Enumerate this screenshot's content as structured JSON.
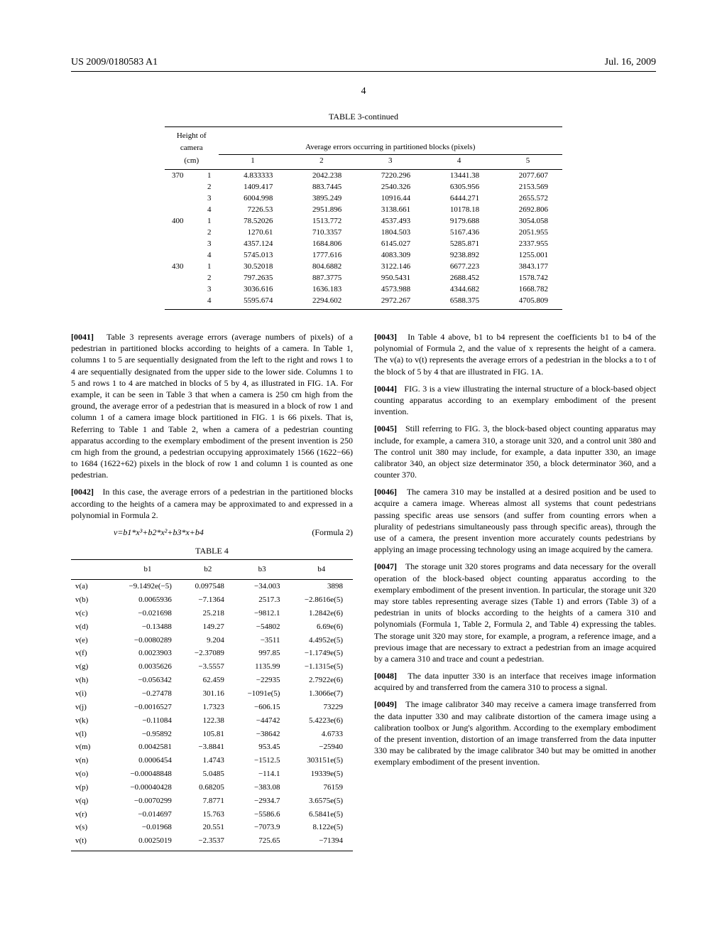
{
  "header": {
    "pub_number": "US 2009/0180583 A1",
    "pub_date": "Jul. 16, 2009",
    "page": "4"
  },
  "table3": {
    "title": "TABLE 3-continued",
    "header_left_l1": "Height of",
    "header_left_l2": "camera",
    "header_unit": "(cm)",
    "header_span": "Average errors occurring in partitioned blocks (pixels)",
    "cols": [
      "1",
      "2",
      "3",
      "4",
      "5"
    ],
    "groups": [
      {
        "h": "370",
        "rows": [
          [
            "1",
            "4.833333",
            "2042.238",
            "7220.296",
            "13441.38",
            "2077.607"
          ],
          [
            "2",
            "1409.417",
            "883.7445",
            "2540.326",
            "6305.956",
            "2153.569"
          ],
          [
            "3",
            "6004.998",
            "3895.249",
            "10916.44",
            "6444.271",
            "2655.572"
          ],
          [
            "4",
            "7226.53",
            "2951.896",
            "3138.661",
            "10178.18",
            "2692.806"
          ]
        ]
      },
      {
        "h": "400",
        "rows": [
          [
            "1",
            "78.52026",
            "1513.772",
            "4537.493",
            "9179.688",
            "3054.058"
          ],
          [
            "2",
            "1270.61",
            "710.3357",
            "1804.503",
            "5167.436",
            "2051.955"
          ],
          [
            "3",
            "4357.124",
            "1684.806",
            "6145.027",
            "5285.871",
            "2337.955"
          ],
          [
            "4",
            "5745.013",
            "1777.616",
            "4083.309",
            "9238.892",
            "1255.001"
          ]
        ]
      },
      {
        "h": "430",
        "rows": [
          [
            "1",
            "30.52018",
            "804.6882",
            "3122.146",
            "6677.223",
            "3843.177"
          ],
          [
            "2",
            "797.2635",
            "887.3775",
            "950.5431",
            "2688.452",
            "1578.742"
          ],
          [
            "3",
            "3036.616",
            "1636.183",
            "4573.988",
            "4344.682",
            "1668.782"
          ],
          [
            "4",
            "5595.674",
            "2294.602",
            "2972.267",
            "6588.375",
            "4705.809"
          ]
        ]
      }
    ]
  },
  "paragraphs": {
    "p41_num": "[0041]",
    "p41": "Table 3 represents average errors (average numbers of pixels) of a pedestrian in partitioned blocks according to heights of a camera. In Table 1, columns 1 to 5 are sequentially designated from the left to the right and rows 1 to 4 are sequentially designated from the upper side to the lower side. Columns 1 to 5 and rows 1 to 4 are matched in blocks of 5 by 4, as illustrated in FIG. 1A. For example, it can be seen in Table 3 that when a camera is 250 cm high from the ground, the average error of a pedestrian that is measured in a block of row 1 and column 1 of a camera image block partitioned in FIG. 1 is 66 pixels. That is, Referring to Table 1 and Table 2, when a camera of a pedestrian counting apparatus according to the exemplary embodiment of the present invention is 250 cm high from the ground, a pedestrian occupying approximately 1566 (1622−66) to 1684 (1622+62) pixels in the block of row 1 and column 1 is counted as one pedestrian.",
    "p42_num": "[0042]",
    "p42": "In this case, the average errors of a pedestrian in the partitioned blocks according to the heights of a camera may be approximated to and expressed in a polynomial in Formula 2.",
    "formula2": "v=b1*x³+b2*x²+b3*x+b4",
    "formula2_label": "(Formula 2)",
    "p43_num": "[0043]",
    "p43": "In Table 4 above, b1 to b4 represent the coefficients b1 to b4 of the polynomial of Formula 2, and the value of x represents the height of a camera. The v(a) to v(t) represents the average errors of a pedestrian in the blocks a to t of the block of 5 by 4 that are illustrated in FIG. 1A.",
    "p44_num": "[0044]",
    "p44": "FIG. 3 is a view illustrating the internal structure of a block-based object counting apparatus according to an exemplary embodiment of the present invention.",
    "p45_num": "[0045]",
    "p45": "Still referring to FIG. 3, the block-based object counting apparatus may include, for example, a camera 310, a storage unit 320, and a control unit 380 and The control unit 380 may include, for example, a data inputter 330, an image calibrator 340, an object size determinator 350, a block determinator 360, and a counter 370.",
    "p46_num": "[0046]",
    "p46": "The camera 310 may be installed at a desired position and be used to acquire a camera image. Whereas almost all systems that count pedestrians passing specific areas use sensors (and suffer from counting errors when a plurality of pedestrians simultaneously pass through specific areas), through the use of a camera, the present invention more accurately counts pedestrians by applying an image processing technology using an image acquired by the camera.",
    "p47_num": "[0047]",
    "p47": "The storage unit 320 stores programs and data necessary for the overall operation of the block-based object counting apparatus according to the exemplary embodiment of the present invention. In particular, the storage unit 320 may store tables representing average sizes (Table 1) and errors (Table 3) of a pedestrian in units of blocks according to the heights of a camera 310 and polynomials (Formula 1, Table 2, Formula 2, and Table 4) expressing the tables. The storage unit 320 may store, for example, a program, a reference image, and a previous image that are necessary to extract a pedestrian from an image acquired by a camera 310 and trace and count a pedestrian.",
    "p48_num": "[0048]",
    "p48": "The data inputter 330 is an interface that receives image information acquired by and transferred from the camera 310 to process a signal.",
    "p49_num": "[0049]",
    "p49": "The image calibrator 340 may receive a camera image transferred from the data inputter 330 and may calibrate distortion of the camera image using a calibration toolbox or Jung's algorithm. According to the exemplary embodiment of the present invention, distortion of an image transferred from the data inputter 330 may be calibrated by the image calibrator 340 but may be omitted in another exemplary embodiment of the present invention."
  },
  "table4": {
    "title": "TABLE 4",
    "cols": [
      "",
      "b1",
      "b2",
      "b3",
      "b4"
    ],
    "rows": [
      [
        "v(a)",
        "−9.1492e(−5)",
        "0.097548",
        "−34.003",
        "3898"
      ],
      [
        "v(b)",
        "0.0065936",
        "−7.1364",
        "2517.3",
        "−2.8616e(5)"
      ],
      [
        "v(c)",
        "−0.021698",
        "25.218",
        "−9812.1",
        "1.2842e(6)"
      ],
      [
        "v(d)",
        "−0.13488",
        "149.27",
        "−54802",
        "6.69e(6)"
      ],
      [
        "v(e)",
        "−0.0080289",
        "9.204",
        "−3511",
        "4.4952e(5)"
      ],
      [
        "v(f)",
        "0.0023903",
        "−2.37089",
        "997.85",
        "−1.1749e(5)"
      ],
      [
        "v(g)",
        "0.0035626",
        "−3.5557",
        "1135.99",
        "−1.1315e(5)"
      ],
      [
        "v(h)",
        "−0.056342",
        "62.459",
        "−22935",
        "2.7922e(6)"
      ],
      [
        "v(i)",
        "−0.27478",
        "301.16",
        "−1091e(5)",
        "1.3066e(7)"
      ],
      [
        "v(j)",
        "−0.0016527",
        "1.7323",
        "−606.15",
        "73229"
      ],
      [
        "v(k)",
        "−0.11084",
        "122.38",
        "−44742",
        "5.4223e(6)"
      ],
      [
        "v(l)",
        "−0.95892",
        "105.81",
        "−38642",
        "4.6733"
      ],
      [
        "v(m)",
        "0.0042581",
        "−3.8841",
        "953.45",
        "−25940"
      ],
      [
        "v(n)",
        "0.0006454",
        "1.4743",
        "−1512.5",
        "303151e(5)"
      ],
      [
        "v(o)",
        "−0.00048848",
        "5.0485",
        "−114.1",
        "19339e(5)"
      ],
      [
        "v(p)",
        "−0.00040428",
        "0.68205",
        "−383.08",
        "76159"
      ],
      [
        "v(q)",
        "−0.0070299",
        "7.8771",
        "−2934.7",
        "3.6575e(5)"
      ],
      [
        "v(r)",
        "−0.014697",
        "15.763",
        "−5586.6",
        "6.5841e(5)"
      ],
      [
        "v(s)",
        "−0.01968",
        "20.551",
        "−7073.9",
        "8.122e(5)"
      ],
      [
        "v(t)",
        "0.0025019",
        "−2.3537",
        "725.65",
        "−71394"
      ]
    ]
  }
}
